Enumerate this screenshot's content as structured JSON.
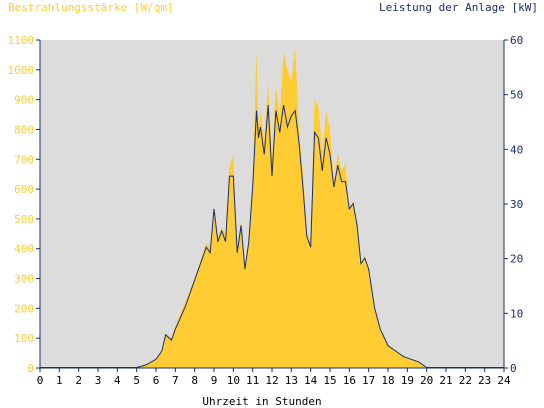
{
  "chart_data": {
    "type": "area",
    "y_left_label": "Bestrahlungsstärke [W/qm]",
    "y_right_label": "Leistung der Anlage [kW]",
    "xlabel": "Uhrzeit in Stunden",
    "xlim": [
      0,
      24
    ],
    "ylim_left": [
      0,
      1100
    ],
    "ylim_right": [
      0,
      60
    ],
    "x_ticks": [
      0,
      1,
      2,
      3,
      4,
      5,
      6,
      7,
      8,
      9,
      10,
      11,
      12,
      13,
      14,
      15,
      16,
      17,
      18,
      19,
      20,
      21,
      22,
      23,
      24
    ],
    "y_left_ticks": [
      0,
      100,
      200,
      300,
      400,
      500,
      600,
      700,
      800,
      900,
      1000,
      1100
    ],
    "y_right_ticks": [
      0,
      10,
      20,
      30,
      40,
      50,
      60
    ],
    "grid": false,
    "colors": {
      "irradiance": "#ffcc33",
      "power": "#1a2f6b",
      "plot_background": "#dcdcdc",
      "left_axis_text": "#ffcc33",
      "right_axis_text": "#1a2f6b"
    },
    "series": [
      {
        "name": "Bestrahlungsstärke [W/qm]",
        "axis": "left",
        "x": [
          0,
          5.0,
          5.5,
          6.0,
          6.3,
          6.5,
          6.8,
          7.0,
          7.5,
          8.0,
          8.3,
          8.6,
          8.8,
          9.0,
          9.2,
          9.4,
          9.6,
          9.8,
          10.0,
          10.2,
          10.4,
          10.6,
          10.8,
          11.0,
          11.2,
          11.3,
          11.4,
          11.6,
          11.8,
          12.0,
          12.2,
          12.4,
          12.6,
          12.8,
          13.0,
          13.2,
          13.4,
          13.6,
          13.8,
          14.0,
          14.2,
          14.4,
          14.6,
          14.8,
          15.0,
          15.2,
          15.4,
          15.6,
          15.8,
          16.0,
          16.2,
          16.4,
          16.6,
          16.8,
          17.0,
          17.3,
          17.6,
          18.0,
          18.4,
          18.8,
          19.2,
          19.6,
          20.0,
          20.3,
          24
        ],
        "y": [
          0,
          0,
          10,
          30,
          60,
          110,
          100,
          140,
          220,
          300,
          360,
          420,
          400,
          540,
          440,
          470,
          450,
          680,
          710,
          400,
          490,
          340,
          420,
          620,
          1070,
          800,
          860,
          760,
          960,
          700,
          950,
          840,
          1060,
          1000,
          960,
          1080,
          790,
          660,
          460,
          420,
          900,
          880,
          720,
          860,
          800,
          620,
          720,
          660,
          690,
          520,
          560,
          480,
          340,
          380,
          330,
          200,
          130,
          80,
          55,
          40,
          30,
          20,
          0,
          0,
          0
        ]
      },
      {
        "name": "Leistung der Anlage [kW]",
        "axis": "right",
        "x": [
          0,
          5.0,
          5.5,
          6.0,
          6.3,
          6.5,
          6.8,
          7.0,
          7.5,
          8.0,
          8.3,
          8.6,
          8.8,
          9.0,
          9.2,
          9.4,
          9.6,
          9.8,
          10.0,
          10.2,
          10.4,
          10.6,
          10.8,
          11.0,
          11.2,
          11.3,
          11.4,
          11.6,
          11.8,
          12.0,
          12.2,
          12.4,
          12.6,
          12.8,
          13.0,
          13.2,
          13.4,
          13.6,
          13.8,
          14.0,
          14.2,
          14.4,
          14.6,
          14.8,
          15.0,
          15.2,
          15.4,
          15.6,
          15.8,
          16.0,
          16.2,
          16.4,
          16.6,
          16.8,
          17.0,
          17.3,
          17.6,
          18.0,
          18.4,
          18.8,
          19.2,
          19.6,
          20.0,
          20.3,
          24
        ],
        "y": [
          0,
          0,
          0.5,
          1.5,
          3,
          6,
          5,
          7,
          11,
          16,
          19,
          22,
          21,
          29,
          23,
          25,
          23,
          35,
          35,
          21,
          26,
          18,
          23,
          33,
          47,
          42,
          44,
          39,
          48,
          35,
          47,
          43,
          48,
          44,
          46,
          47,
          41,
          33,
          24,
          22,
          43,
          42,
          36,
          42,
          39,
          33,
          37,
          34,
          34,
          29,
          30,
          26,
          19,
          20,
          18,
          11,
          7,
          4,
          3,
          2,
          1.5,
          1,
          0,
          0,
          0
        ]
      }
    ]
  }
}
